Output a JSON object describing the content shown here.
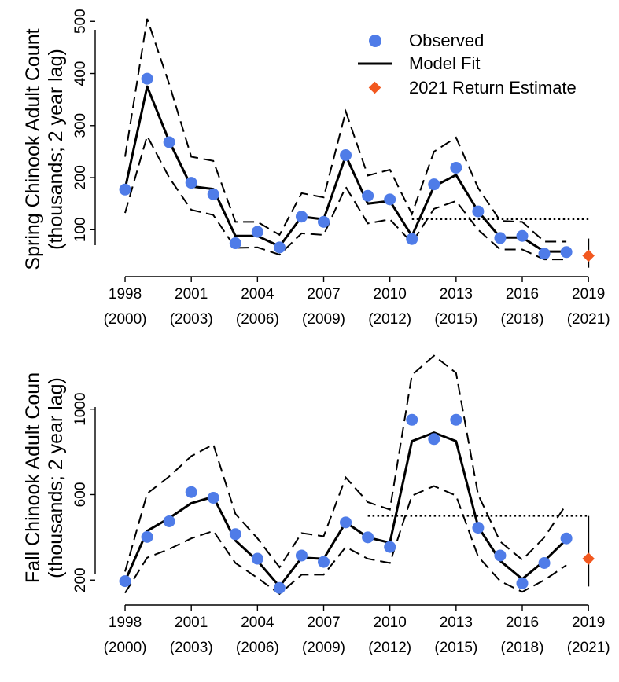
{
  "colors": {
    "observed": "#4F7CE8",
    "estimate": "#F2581F",
    "line": "#000000"
  },
  "legend": {
    "entries": [
      {
        "label": "Observed",
        "marker": "circle"
      },
      {
        "label": "Model Fit",
        "marker": "line"
      },
      {
        "label": "2021 Return Estimate",
        "marker": "diamond"
      }
    ]
  },
  "chart_data": [
    {
      "type": "line",
      "name": "spring",
      "ylabel_line1": "Spring Chinook Adult Count",
      "ylabel_line2": "(thousands; 2 year lag)",
      "xlim": [
        1997.5,
        2019.6
      ],
      "ylim": [
        25,
        520
      ],
      "x_ticks": [
        1998,
        2001,
        2004,
        2007,
        2010,
        2013,
        2016,
        2019
      ],
      "x_tick_labels": [
        "1998",
        "2001",
        "2004",
        "2007",
        "2010",
        "2013",
        "2016",
        "2019"
      ],
      "x_tick_sublabels": [
        "(2000)",
        "(2003)",
        "(2006)",
        "(2009)",
        "(2012)",
        "(2015)",
        "(2018)",
        "(2021)"
      ],
      "y_ticks": [
        100,
        200,
        300,
        400,
        500
      ],
      "x": [
        1998,
        1999,
        2000,
        2001,
        2002,
        2003,
        2004,
        2005,
        2006,
        2007,
        2008,
        2009,
        2010,
        2011,
        2012,
        2013,
        2014,
        2015,
        2016,
        2017,
        2018
      ],
      "observed": [
        177,
        390,
        268,
        190,
        168,
        74,
        96,
        66,
        125,
        115,
        243,
        165,
        158,
        82,
        187,
        219,
        135,
        84,
        88,
        54,
        57
      ],
      "model_fit": [
        178,
        375,
        270,
        183,
        178,
        88,
        88,
        68,
        125,
        120,
        242,
        150,
        155,
        88,
        183,
        205,
        135,
        85,
        85,
        58,
        58
      ],
      "upper": [
        240,
        505,
        380,
        240,
        232,
        115,
        115,
        90,
        170,
        162,
        327,
        204,
        215,
        130,
        250,
        277,
        180,
        117,
        115,
        77,
        77
      ],
      "lower": [
        132,
        280,
        200,
        138,
        128,
        65,
        66,
        52,
        93,
        90,
        182,
        112,
        120,
        75,
        140,
        155,
        100,
        62,
        62,
        43,
        43
      ],
      "reference_line": {
        "y": 120,
        "x_from": 2011,
        "x_to": 2019
      },
      "estimate": {
        "x": 2019,
        "value": 50,
        "low": 27,
        "high": 83
      }
    },
    {
      "type": "line",
      "name": "fall",
      "ylabel_line1": "Fall Chinook Adult Coun",
      "ylabel_line2": "(thousands; 2 year lag)",
      "xlim": [
        1997.5,
        2019.6
      ],
      "ylim": [
        120,
        1260
      ],
      "x_ticks": [
        1998,
        2001,
        2004,
        2007,
        2010,
        2013,
        2016,
        2019
      ],
      "x_tick_labels": [
        "1998",
        "2001",
        "2004",
        "2007",
        "2010",
        "2013",
        "2016",
        "2019"
      ],
      "x_tick_sublabels": [
        "(2000)",
        "(2003)",
        "(2006)",
        "(2009)",
        "(2012)",
        "(2015)",
        "(2018)",
        "(2021)"
      ],
      "y_ticks": [
        200,
        600,
        1000
      ],
      "x": [
        1998,
        1999,
        2000,
        2001,
        2002,
        2003,
        2004,
        2005,
        2006,
        2007,
        2008,
        2009,
        2010,
        2011,
        2012,
        2013,
        2014,
        2015,
        2016,
        2017,
        2018
      ],
      "observed": [
        195,
        402,
        475,
        612,
        585,
        415,
        300,
        163,
        315,
        285,
        470,
        400,
        355,
        950,
        860,
        950,
        445,
        315,
        185,
        280,
        395
      ],
      "model_fit": [
        195,
        430,
        490,
        560,
        590,
        385,
        290,
        170,
        305,
        300,
        470,
        400,
        375,
        850,
        890,
        850,
        450,
        290,
        205,
        290,
        390
      ],
      "upper": [
        240,
        605,
        685,
        780,
        835,
        510,
        395,
        260,
        420,
        405,
        680,
        565,
        530,
        1160,
        1250,
        1170,
        600,
        380,
        295,
        400,
        555
      ],
      "lower": [
        140,
        305,
        345,
        395,
        430,
        280,
        210,
        135,
        225,
        225,
        355,
        300,
        280,
        595,
        640,
        595,
        310,
        195,
        145,
        200,
        270
      ],
      "reference_line": {
        "y": 500,
        "x_from": 2009,
        "x_to": 2019
      },
      "estimate": {
        "x": 2019,
        "value": 300,
        "low": 170,
        "high": 500
      }
    }
  ]
}
